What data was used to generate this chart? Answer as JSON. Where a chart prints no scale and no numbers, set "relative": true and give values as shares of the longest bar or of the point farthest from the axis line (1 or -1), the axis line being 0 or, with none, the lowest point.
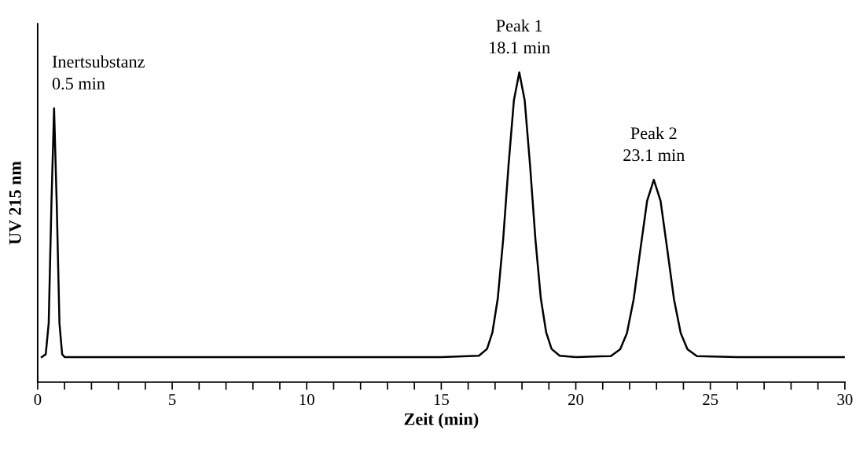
{
  "chart_data": {
    "type": "line",
    "relative": true,
    "xlabel": "Zeit (min)",
    "ylabel": "UV 215 nm",
    "xlim": [
      0,
      30
    ],
    "xticks": [
      0,
      {
        "value": 1,
        "label": null
      },
      {
        "value": 2,
        "label": null
      },
      {
        "value": 3,
        "label": null
      },
      {
        "value": 4,
        "label": null
      },
      5,
      {
        "value": 6,
        "label": null
      },
      {
        "value": 7,
        "label": null
      },
      {
        "value": 8,
        "label": null
      },
      {
        "value": 9,
        "label": null
      },
      10,
      {
        "value": 11,
        "label": null
      },
      {
        "value": 12,
        "label": null
      },
      {
        "value": 13,
        "label": null
      },
      {
        "value": 14,
        "label": null
      },
      15,
      {
        "value": 16,
        "label": null
      },
      {
        "value": 17,
        "label": null
      },
      {
        "value": 18,
        "label": null
      },
      {
        "value": 19,
        "label": null
      },
      20,
      {
        "value": 21,
        "label": null
      },
      {
        "value": 22,
        "label": null
      },
      {
        "value": 23,
        "label": null
      },
      {
        "value": 24,
        "label": null
      },
      25,
      {
        "value": 26,
        "label": null
      },
      {
        "value": 27,
        "label": null
      },
      {
        "value": 28,
        "label": null
      },
      {
        "value": 29,
        "label": null
      },
      30
    ],
    "grid": false,
    "legend": false,
    "marker": "none",
    "line_style": "solid",
    "series": [
      {
        "color": "#000000",
        "x": [
          0.15,
          0.3,
          0.41,
          0.51,
          0.61,
          0.71,
          0.81,
          0.91,
          1.0,
          5,
          10,
          15,
          16.4,
          16.7,
          16.9,
          17.1,
          17.3,
          17.5,
          17.7,
          17.9,
          18.1,
          18.3,
          18.5,
          18.7,
          18.9,
          19.1,
          19.4,
          20,
          21.3,
          21.65,
          21.9,
          22.15,
          22.4,
          22.65,
          22.9,
          23.15,
          23.4,
          23.65,
          23.9,
          24.15,
          24.5,
          26,
          30
        ],
        "values": [
          0.081,
          0.09,
          0.19,
          0.57,
          0.884,
          0.57,
          0.19,
          0.09,
          0.081,
          0.081,
          0.081,
          0.081,
          0.085,
          0.107,
          0.16,
          0.27,
          0.46,
          0.7,
          0.91,
          1.0,
          0.91,
          0.7,
          0.46,
          0.27,
          0.16,
          0.107,
          0.085,
          0.081,
          0.084,
          0.106,
          0.158,
          0.267,
          0.428,
          0.585,
          0.653,
          0.585,
          0.428,
          0.267,
          0.158,
          0.106,
          0.084,
          0.081,
          0.081
        ]
      }
    ],
    "annotations": [
      {
        "text": "Inertsubstanz\n0.5 min",
        "x": 0.61,
        "y": 0.884
      },
      {
        "text": "Peak 1\n18.1 min",
        "x": 17.9,
        "y": 1.0
      },
      {
        "text": "Peak 2\n23.1 min",
        "x": 22.9,
        "y": 0.653
      }
    ]
  }
}
